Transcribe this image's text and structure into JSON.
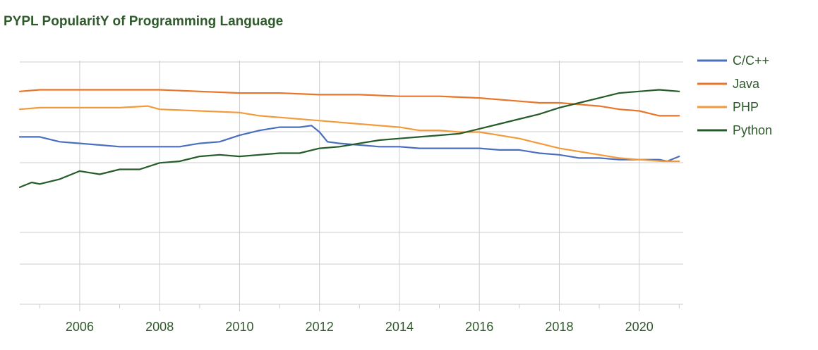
{
  "chart_data": {
    "type": "line",
    "title": "PYPL PopularitY of Programming Language",
    "xlabel": "",
    "ylabel": "",
    "xlim": [
      2004.5,
      2021.1
    ],
    "ylim": [
      -4,
      11
    ],
    "grid": true,
    "legend_position": "right",
    "x_ticks": [
      2006,
      2008,
      2010,
      2012,
      2014,
      2016,
      2018,
      2020
    ],
    "x_tick_labels": [
      "2006",
      "2008",
      "2010",
      "2012",
      "2014",
      "2016",
      "2018",
      "2020"
    ],
    "series": [
      {
        "name": "C/C++",
        "color": "#4a6fbf",
        "x": [
          2004.5,
          2005.0,
          2005.5,
          2006.0,
          2006.5,
          2007.0,
          2007.5,
          2008.0,
          2008.5,
          2009.0,
          2009.5,
          2010.0,
          2010.5,
          2011.0,
          2011.5,
          2011.8,
          2012.0,
          2012.2,
          2012.5,
          2013.0,
          2013.5,
          2014.0,
          2014.5,
          2015.0,
          2015.5,
          2016.0,
          2016.5,
          2017.0,
          2017.5,
          2018.0,
          2018.5,
          2019.0,
          2019.5,
          2020.0,
          2020.5,
          2020.7,
          2021.0
        ],
        "values": [
          6.3,
          6.3,
          6.0,
          5.9,
          5.8,
          5.7,
          5.7,
          5.7,
          5.7,
          5.9,
          6.0,
          6.4,
          6.7,
          6.9,
          6.9,
          7.0,
          6.6,
          6.0,
          5.9,
          5.8,
          5.7,
          5.7,
          5.6,
          5.6,
          5.6,
          5.6,
          5.5,
          5.5,
          5.3,
          5.2,
          5.0,
          5.0,
          4.9,
          4.9,
          4.9,
          4.8,
          5.1
        ]
      },
      {
        "name": "Java",
        "color": "#e8762a",
        "x": [
          2004.5,
          2005.0,
          2006.0,
          2007.0,
          2008.0,
          2009.0,
          2010.0,
          2011.0,
          2012.0,
          2013.0,
          2014.0,
          2015.0,
          2016.0,
          2017.0,
          2017.5,
          2018.0,
          2018.5,
          2019.0,
          2019.5,
          2020.0,
          2020.5,
          2021.0
        ],
        "values": [
          9.1,
          9.2,
          9.2,
          9.2,
          9.2,
          9.1,
          9.0,
          9.0,
          8.9,
          8.9,
          8.8,
          8.8,
          8.7,
          8.5,
          8.4,
          8.4,
          8.3,
          8.2,
          8.0,
          7.9,
          7.6,
          7.6
        ]
      },
      {
        "name": "PHP",
        "color": "#f39a3b",
        "x": [
          2004.5,
          2005.0,
          2006.0,
          2006.5,
          2007.0,
          2007.7,
          2008.0,
          2009.0,
          2010.0,
          2010.5,
          2011.0,
          2012.0,
          2013.0,
          2014.0,
          2014.5,
          2015.0,
          2015.5,
          2016.0,
          2016.5,
          2017.0,
          2017.5,
          2018.0,
          2018.5,
          2019.0,
          2019.5,
          2020.0,
          2020.6,
          2021.0
        ],
        "values": [
          8.0,
          8.1,
          8.1,
          8.1,
          8.1,
          8.2,
          8.0,
          7.9,
          7.8,
          7.6,
          7.5,
          7.3,
          7.1,
          6.9,
          6.7,
          6.7,
          6.6,
          6.6,
          6.4,
          6.2,
          5.9,
          5.6,
          5.4,
          5.2,
          5.0,
          4.9,
          4.8,
          4.8
        ]
      },
      {
        "name": "Python",
        "color": "#255c2a",
        "x": [
          2004.5,
          2004.8,
          2005.0,
          2005.5,
          2006.0,
          2006.5,
          2007.0,
          2007.5,
          2008.0,
          2008.5,
          2009.0,
          2009.5,
          2010.0,
          2010.5,
          2011.0,
          2011.5,
          2012.0,
          2012.5,
          2013.0,
          2013.5,
          2014.0,
          2014.5,
          2015.0,
          2015.5,
          2016.0,
          2016.5,
          2017.0,
          2017.5,
          2018.0,
          2018.5,
          2019.0,
          2019.5,
          2020.0,
          2020.5,
          2021.0
        ],
        "values": [
          3.2,
          3.5,
          3.4,
          3.7,
          4.2,
          4.0,
          4.3,
          4.3,
          4.7,
          4.8,
          5.1,
          5.2,
          5.1,
          5.2,
          5.3,
          5.3,
          5.6,
          5.7,
          5.9,
          6.1,
          6.2,
          6.3,
          6.4,
          6.5,
          6.8,
          7.1,
          7.4,
          7.7,
          8.1,
          8.4,
          8.7,
          9.0,
          9.1,
          9.2,
          9.1
        ]
      }
    ]
  }
}
